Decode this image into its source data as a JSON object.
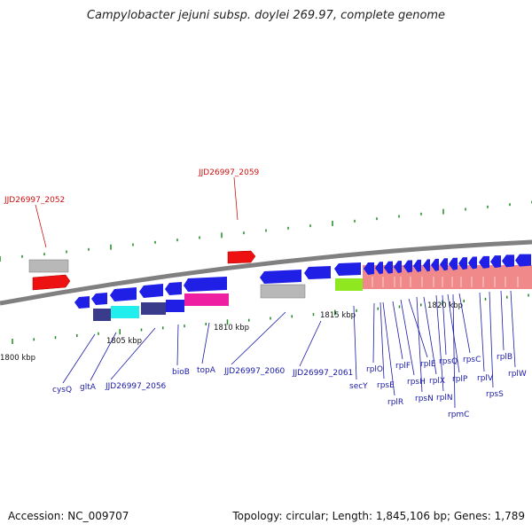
{
  "header": {
    "title": "Campylobacter jejuni subsp. doylei 269.97, complete genome"
  },
  "footer": {
    "accession": "Accession: NC_009707",
    "summary": "Topology: circular; Length: 1,845,106 bp; Genes: 1,789"
  },
  "colors": {
    "backbone": "#808080",
    "tick": "#1f8a1f",
    "label_blue": "#1a1aa8",
    "label_red": "#cc1111",
    "gene_blue": "#1f1fe6",
    "gene_red": "#ee1111",
    "gene_gray": "#b8b8b8",
    "gene_cyan": "#22eeee",
    "gene_navy": "#3b3b8c",
    "gene_magenta": "#ee1fa0",
    "gene_lime": "#8fe81f",
    "gene_pink": "#f08a8a"
  },
  "scale_labels": [
    "1800 kbp",
    "1805 kbp",
    "1810 kbp",
    "1815 kbp",
    "1820 kbp"
  ],
  "red_labels": [
    "JJD26997_2052",
    "JJD26997_2059"
  ],
  "gene_labels": [
    "cysQ",
    "gltA",
    "JJD26997_2056",
    "bioB",
    "topA",
    "JJD26997_2060",
    "JJD26997_2061",
    "secY",
    "rplO",
    "rpsE",
    "rplR",
    "rplF",
    "rpsH",
    "rplE",
    "rpsN",
    "rplX",
    "rplN",
    "rpsQ",
    "rplP",
    "rpmC",
    "rpsC",
    "rplV",
    "rpsS",
    "rplB",
    "rplW"
  ]
}
